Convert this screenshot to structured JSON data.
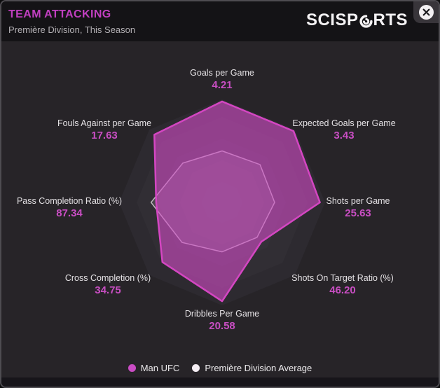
{
  "header": {
    "title": "TEAM ATTACKING",
    "subtitle": "Première Division, This Season",
    "logo_left": "SCISP",
    "logo_right": "RTS",
    "logo_name": "SciSports"
  },
  "chart_data": {
    "type": "radar",
    "title": "TEAM ATTACKING",
    "subtitle": "Première Division, This Season",
    "grid": "concentric-octagons",
    "legend_position": "bottom",
    "axes": [
      {
        "label": "Goals per Game",
        "value": "4.21",
        "fraction_team": 0.98,
        "fraction_avg": 0.5
      },
      {
        "label": "Expected Goals per Game",
        "value": "3.43",
        "fraction_team": 0.98,
        "fraction_avg": 0.52
      },
      {
        "label": "Shots per Game",
        "value": "25.63",
        "fraction_team": 0.95,
        "fraction_avg": 0.51
      },
      {
        "label": "Shots On Target Ratio (%)",
        "value": "46.20",
        "fraction_team": 0.54,
        "fraction_avg": 0.48
      },
      {
        "label": "Dribbles Per Game",
        "value": "20.58",
        "fraction_team": 0.96,
        "fraction_avg": 0.48
      },
      {
        "label": "Cross Completion (%)",
        "value": "34.75",
        "fraction_team": 0.82,
        "fraction_avg": 0.55
      },
      {
        "label": "Pass Completion Ratio (%)",
        "value": "87.34",
        "fraction_team": 0.64,
        "fraction_avg": 0.69
      },
      {
        "label": "Fouls Against per Game",
        "value": "17.63",
        "fraction_team": 0.93,
        "fraction_avg": 0.54
      }
    ],
    "series": [
      {
        "name": "Man UFC",
        "color": "#d446c2",
        "fill": "rgba(212,76,200,0.60)"
      },
      {
        "name": "Première Division Average",
        "color": "rgba(240,233,240,0.70)",
        "fill": "rgba(235,225,235,0.14)"
      }
    ]
  },
  "legend": [
    {
      "label": "Man UFC",
      "color": "#ca4cc4"
    },
    {
      "label": "Première Division Average",
      "color": "#f5eef4"
    }
  ],
  "colors": {
    "accent_magenta": "#c13fc0",
    "value_text": "#c94ec3",
    "panel_bg": "#272428",
    "header_bg": "#141316"
  }
}
